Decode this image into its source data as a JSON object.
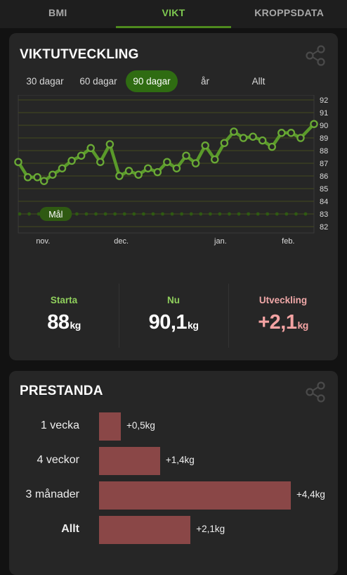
{
  "tabs": [
    {
      "label": "BMI",
      "active": false
    },
    {
      "label": "VIKT",
      "active": true
    },
    {
      "label": "KROPPSDATA",
      "active": false
    }
  ],
  "weight_card": {
    "title": "VIKTUTVECKLING",
    "share_icon": "share-icon",
    "ranges": [
      {
        "label": "30 dagar",
        "active": false
      },
      {
        "label": "60 dagar",
        "active": false
      },
      {
        "label": "90 dagar",
        "active": true
      },
      {
        "label": "år",
        "active": false
      },
      {
        "label": "Allt",
        "active": false
      }
    ],
    "stats": {
      "start_label": "Starta",
      "start_value": "88",
      "start_unit": "kg",
      "now_label": "Nu",
      "now_value": "90,1",
      "now_unit": "kg",
      "change_label": "Utveckling",
      "change_value": "+2,1",
      "change_unit": "kg"
    }
  },
  "chart_data": {
    "type": "line",
    "ylim": [
      81.5,
      92
    ],
    "yticks": [
      82,
      83,
      84,
      85,
      86,
      87,
      88,
      89,
      90,
      91,
      92
    ],
    "xlim": [
      0,
      31
    ],
    "x_labels": [
      {
        "label": "nov.",
        "x": 2.6
      },
      {
        "label": "dec.",
        "x": 10.8
      },
      {
        "label": "jan.",
        "x": 21.2
      },
      {
        "label": "feb.",
        "x": 28.3
      }
    ],
    "series": [
      {
        "values": [
          {
            "x": 0,
            "y": 87.1
          },
          {
            "x": 1,
            "y": 85.9
          },
          {
            "x": 2,
            "y": 85.9
          },
          {
            "x": 2.7,
            "y": 85.6
          },
          {
            "x": 3.6,
            "y": 86.1
          },
          {
            "x": 4.6,
            "y": 86.6
          },
          {
            "x": 5.6,
            "y": 87.2
          },
          {
            "x": 6.6,
            "y": 87.6
          },
          {
            "x": 7.6,
            "y": 88.2
          },
          {
            "x": 8.6,
            "y": 87.1
          },
          {
            "x": 9.6,
            "y": 88.5
          },
          {
            "x": 10.6,
            "y": 86.0
          },
          {
            "x": 11.6,
            "y": 86.4
          },
          {
            "x": 12.6,
            "y": 86.1
          },
          {
            "x": 13.6,
            "y": 86.6
          },
          {
            "x": 14.6,
            "y": 86.3
          },
          {
            "x": 15.6,
            "y": 87.1
          },
          {
            "x": 16.6,
            "y": 86.6
          },
          {
            "x": 17.6,
            "y": 87.6
          },
          {
            "x": 18.6,
            "y": 87.0
          },
          {
            "x": 19.6,
            "y": 88.4
          },
          {
            "x": 20.6,
            "y": 87.3
          },
          {
            "x": 21.6,
            "y": 88.6
          },
          {
            "x": 22.6,
            "y": 89.5
          },
          {
            "x": 23.6,
            "y": 89.0
          },
          {
            "x": 24.6,
            "y": 89.1
          },
          {
            "x": 25.6,
            "y": 88.8
          },
          {
            "x": 26.6,
            "y": 88.3
          },
          {
            "x": 27.6,
            "y": 89.4
          },
          {
            "x": 28.6,
            "y": 89.4
          },
          {
            "x": 29.6,
            "y": 89.0
          },
          {
            "x": 31,
            "y": 90.1
          }
        ]
      }
    ],
    "goal": {
      "label": "Mål",
      "y": 83
    }
  },
  "performance_card": {
    "title": "PRESTANDA",
    "share_icon": "share-icon",
    "max_value": 4.4,
    "rows": [
      {
        "label": "1 vecka",
        "value": 0.5,
        "text": "+0,5kg",
        "bold": false
      },
      {
        "label": "4 veckor",
        "value": 1.4,
        "text": "+1,4kg",
        "bold": false
      },
      {
        "label": "3 månader",
        "value": 4.4,
        "text": "+4,4kg",
        "bold": false
      },
      {
        "label": "Allt",
        "value": 2.1,
        "text": "+2,1kg",
        "bold": true
      }
    ]
  },
  "colors": {
    "accent": "#7ec850",
    "line": "#5a9a2a",
    "bar": "#8a4747",
    "change": "#f4a3a3"
  }
}
